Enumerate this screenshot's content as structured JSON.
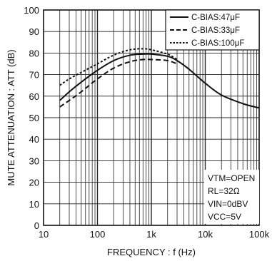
{
  "chart_data": {
    "type": "line",
    "xscale": "log",
    "xlim": [
      10,
      100000
    ],
    "ylim": [
      0,
      100
    ],
    "xticks": [
      10,
      100,
      1000,
      10000,
      100000
    ],
    "xtick_labels": [
      "10",
      "100",
      "1k",
      "10k",
      "100k"
    ],
    "yticks": [
      0,
      10,
      20,
      30,
      40,
      50,
      60,
      70,
      80,
      90,
      100
    ],
    "ytick_labels": [
      "0",
      "10",
      "20",
      "30",
      "40",
      "50",
      "60",
      "70",
      "80",
      "90",
      "100"
    ],
    "grid": true,
    "xlabel": "FREQUENCY : f (Hz)",
    "ylabel": "MUTE ATTENUATION : ATT (dB)",
    "legend_position": "top-right",
    "series": [
      {
        "name": "C-BIAS:47μF",
        "dash": "solid",
        "points": [
          [
            20,
            58
          ],
          [
            30,
            62
          ],
          [
            50,
            66.5
          ],
          [
            100,
            72
          ],
          [
            200,
            76.5
          ],
          [
            400,
            79
          ],
          [
            700,
            79.5
          ],
          [
            1000,
            79.5
          ],
          [
            2000,
            78.5
          ],
          [
            3000,
            76.5
          ],
          [
            5000,
            72.5
          ],
          [
            10000,
            66
          ],
          [
            20000,
            60.5
          ],
          [
            50000,
            56.5
          ],
          [
            100000,
            54.5
          ]
        ]
      },
      {
        "name": "C-BIAS:33μF",
        "dash": "dashed",
        "points": [
          [
            20,
            55
          ],
          [
            30,
            58
          ],
          [
            50,
            62
          ],
          [
            100,
            68
          ],
          [
            200,
            73
          ],
          [
            400,
            76
          ],
          [
            700,
            77
          ],
          [
            1000,
            77
          ],
          [
            2000,
            76.5
          ],
          [
            3000,
            75
          ]
        ]
      },
      {
        "name": "C-BIAS:100μF",
        "dash": "dotted",
        "points": [
          [
            20,
            65
          ],
          [
            30,
            68
          ],
          [
            50,
            71
          ],
          [
            100,
            75
          ],
          [
            200,
            79
          ],
          [
            400,
            81.5
          ],
          [
            700,
            82
          ],
          [
            1000,
            81.5
          ],
          [
            2000,
            79.5
          ],
          [
            3000,
            77
          ]
        ]
      }
    ],
    "conditions": [
      "VTM=OPEN",
      "RL=32Ω",
      "VIN=0dBV",
      "VCC=5V"
    ]
  },
  "colors": {
    "line": "#111111",
    "grid": "#222222",
    "background": "#ffffff"
  }
}
